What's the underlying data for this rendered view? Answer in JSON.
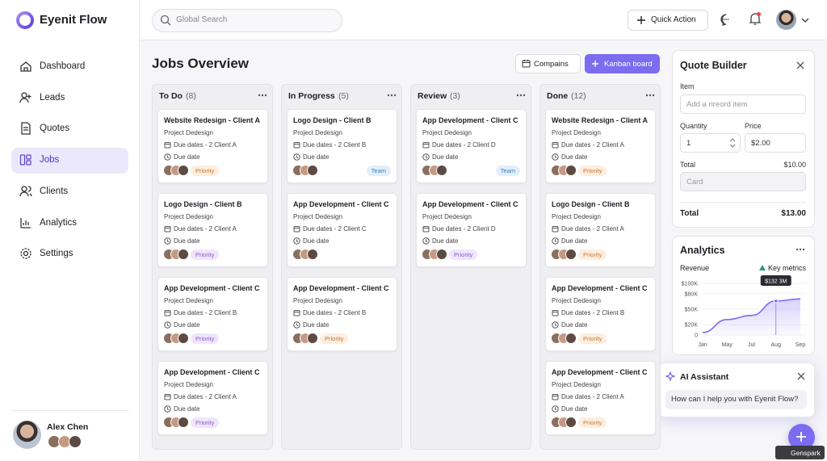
{
  "brand": "Eyenit Flow",
  "topbar": {
    "search_placeholder": "Global Search",
    "quick_action": "Quick Action"
  },
  "nav": {
    "items": [
      "Dashboard",
      "Leads",
      "Quotes",
      "Jobs",
      "Clients",
      "Analytics",
      "Settings"
    ],
    "active": 3
  },
  "user": {
    "name": "Alex Chen"
  },
  "main": {
    "title": "Jobs Overview",
    "buttons": [
      "Compains",
      "Kanban board"
    ]
  },
  "columns": [
    {
      "title": "To Do",
      "count": "(8)",
      "cards": [
        {
          "title": "Website Redesign - Client A",
          "subtitle": "Project Dedesign",
          "due_line": "Due dates - 2 Client A",
          "due": "Due date",
          "tag": "Priority",
          "tag_color": "orange"
        },
        {
          "title": "Logo Design - Client B",
          "subtitle": "Project Dedesign",
          "due_line": "Due dates - 2 Client A",
          "due": "Due date",
          "tag": "Priority",
          "tag_color": "purple"
        },
        {
          "title": "App Development - Client C",
          "subtitle": "Project Dedesign",
          "due_line": "Due dates - 2 Client B",
          "due": "Due date",
          "tag": "Priority",
          "tag_color": "purple"
        },
        {
          "title": "App Development - Client C",
          "subtitle": "Project Dedesign",
          "due_line": "Due dates - 2 Client A",
          "due": "Due date",
          "tag": "Priority",
          "tag_color": "purple"
        }
      ]
    },
    {
      "title": "In Progress",
      "count": "(5)",
      "cards": [
        {
          "title": "Logo Design - Client B",
          "subtitle": "Project Dedesign",
          "due_line": "Due dates - 2 Client B",
          "due": "Due date",
          "tag": "Team",
          "tag_color": "blue"
        },
        {
          "title": "App Development - Client C",
          "subtitle": "Project Dedesign",
          "due_line": "Due dates - 2 Client C",
          "due": "Due date"
        },
        {
          "title": "App Development - Client C",
          "subtitle": "Project Dedesign",
          "due_line": "Due dates - 2 Client B",
          "due": "Due date",
          "tag": "Priority",
          "tag_color": "orange"
        }
      ]
    },
    {
      "title": "Review",
      "count": "(3)",
      "cards": [
        {
          "title": "App Development - Client C",
          "subtitle": "Project Dedesign",
          "due_line": "Due dates - 2 Client D",
          "due": "Due date",
          "tag": "Team",
          "tag_color": "blue"
        },
        {
          "title": "App Development - Client C",
          "subtitle": "Project Dedesign",
          "due_line": "Due dates - 2 Client D",
          "due": "Due date",
          "tag": "Priority",
          "tag_color": "purple"
        }
      ]
    },
    {
      "title": "Done",
      "count": "(12)",
      "cards": [
        {
          "title": "Website Redesign - Client A",
          "subtitle": "Project Dedesign",
          "due_line": "Due dates - 2 Client A",
          "due": "Due date",
          "tag": "Priority",
          "tag_color": "orange"
        },
        {
          "title": "Logo Design - Client B",
          "subtitle": "Project Dedesign",
          "due_line": "Due dates - 2 Client A",
          "due": "Due date",
          "tag": "Priority",
          "tag_color": "orange"
        },
        {
          "title": "App Development - Client C",
          "subtitle": "Project Dedesign",
          "due_line": "Due dates - 2 Client B",
          "due": "Due date",
          "tag": "Priority",
          "tag_color": "orange"
        },
        {
          "title": "App Development - Client C",
          "subtitle": "Project Dedesign",
          "due_line": "Due dates - 2 Client A",
          "due": "Due date",
          "tag": "Priority",
          "tag_color": "orange"
        }
      ]
    }
  ],
  "quote_builder": {
    "title": "Quote Builder",
    "item_label": "Item",
    "item_placeholder": "Add a nreord item",
    "quantity_label": "Quantity",
    "quantity": "1",
    "price_label": "Price",
    "price": "$2.00",
    "subtotal_label": "Total",
    "subtotal": "$10.00",
    "card_placeholder": "Card",
    "total_label": "Total",
    "total": "$13.00"
  },
  "analytics": {
    "title": "Analytics",
    "label": "Revenue",
    "metrics_label": "Key metrics",
    "chart_data": {
      "type": "line",
      "categories": [
        "Jan",
        "May",
        "Jul",
        "Aug",
        "Sep"
      ],
      "values": [
        5000,
        30000,
        38000,
        66000,
        70000
      ],
      "color": "#7b6cf0",
      "ylim": [
        0,
        100000
      ],
      "yticks": [
        0,
        {
          "value": 20000,
          "label": "$20K"
        },
        {
          "value": 50000,
          "label": "$50K"
        },
        {
          "value": 80000,
          "label": "$80K"
        },
        {
          "value": 100000,
          "label": "$100K"
        }
      ],
      "grid": true,
      "annotation": "$132 3M",
      "annotation_index": 3
    }
  },
  "ai_assistant": {
    "title": "AI Assistant",
    "prompt": "How can I help you with Eyenit Flow?"
  },
  "watermark": "Genspark"
}
